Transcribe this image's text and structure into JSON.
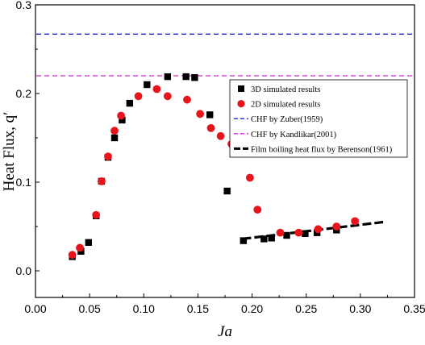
{
  "chart_data": {
    "type": "scatter",
    "xlabel": "Ja",
    "ylabel": "Heat Flux, q′",
    "xlim": [
      0,
      0.35
    ],
    "ylim": [
      -0.03,
      0.3
    ],
    "xticks": [
      "0.00",
      "0.05",
      "0.10",
      "0.15",
      "0.20",
      "0.25",
      "0.30",
      "0.35"
    ],
    "yticks": [
      "0.0",
      "0.1",
      "0.2",
      "0.3"
    ],
    "legend_position": "right",
    "series": [
      {
        "name": "3D simulated results",
        "marker": "square",
        "color": "#000000",
        "points": [
          [
            0.034,
            0.016
          ],
          [
            0.042,
            0.022
          ],
          [
            0.049,
            0.032
          ],
          [
            0.056,
            0.062
          ],
          [
            0.061,
            0.101
          ],
          [
            0.067,
            0.128
          ],
          [
            0.073,
            0.15
          ],
          [
            0.08,
            0.17
          ],
          [
            0.087,
            0.189
          ],
          [
            0.103,
            0.21
          ],
          [
            0.122,
            0.219
          ],
          [
            0.139,
            0.219
          ],
          [
            0.147,
            0.218
          ],
          [
            0.161,
            0.176
          ],
          [
            0.177,
            0.09
          ],
          [
            0.192,
            0.034
          ],
          [
            0.211,
            0.036
          ],
          [
            0.218,
            0.037
          ],
          [
            0.232,
            0.04
          ],
          [
            0.249,
            0.042
          ],
          [
            0.26,
            0.043
          ],
          [
            0.278,
            0.046
          ]
        ]
      },
      {
        "name": "2D simulated results",
        "marker": "circle",
        "color": "#e8141c",
        "points": [
          [
            0.034,
            0.018
          ],
          [
            0.041,
            0.026
          ],
          [
            0.056,
            0.063
          ],
          [
            0.061,
            0.101
          ],
          [
            0.067,
            0.129
          ],
          [
            0.073,
            0.158
          ],
          [
            0.079,
            0.175
          ],
          [
            0.095,
            0.197
          ],
          [
            0.112,
            0.205
          ],
          [
            0.122,
            0.197
          ],
          [
            0.14,
            0.193
          ],
          [
            0.152,
            0.177
          ],
          [
            0.162,
            0.161
          ],
          [
            0.171,
            0.152
          ],
          [
            0.181,
            0.143
          ],
          [
            0.198,
            0.105
          ],
          [
            0.205,
            0.069
          ],
          [
            0.226,
            0.043
          ],
          [
            0.243,
            0.043
          ],
          [
            0.261,
            0.047
          ],
          [
            0.278,
            0.05
          ],
          [
            0.295,
            0.056
          ]
        ]
      },
      {
        "name": "CHF by Zuber(1959)",
        "style": "dashed",
        "color": "#1f22c4",
        "y": 0.267
      },
      {
        "name": "CHF by Kandlikar(2001)",
        "style": "dashed",
        "color": "#cf29cf",
        "y": 0.22
      },
      {
        "name": "Film boiling heat flux by Berenson(1961)",
        "style": "thick-dashed",
        "color": "#000000",
        "x": [
          0.191,
          0.321
        ],
        "y": [
          0.036,
          0.055
        ]
      }
    ]
  }
}
